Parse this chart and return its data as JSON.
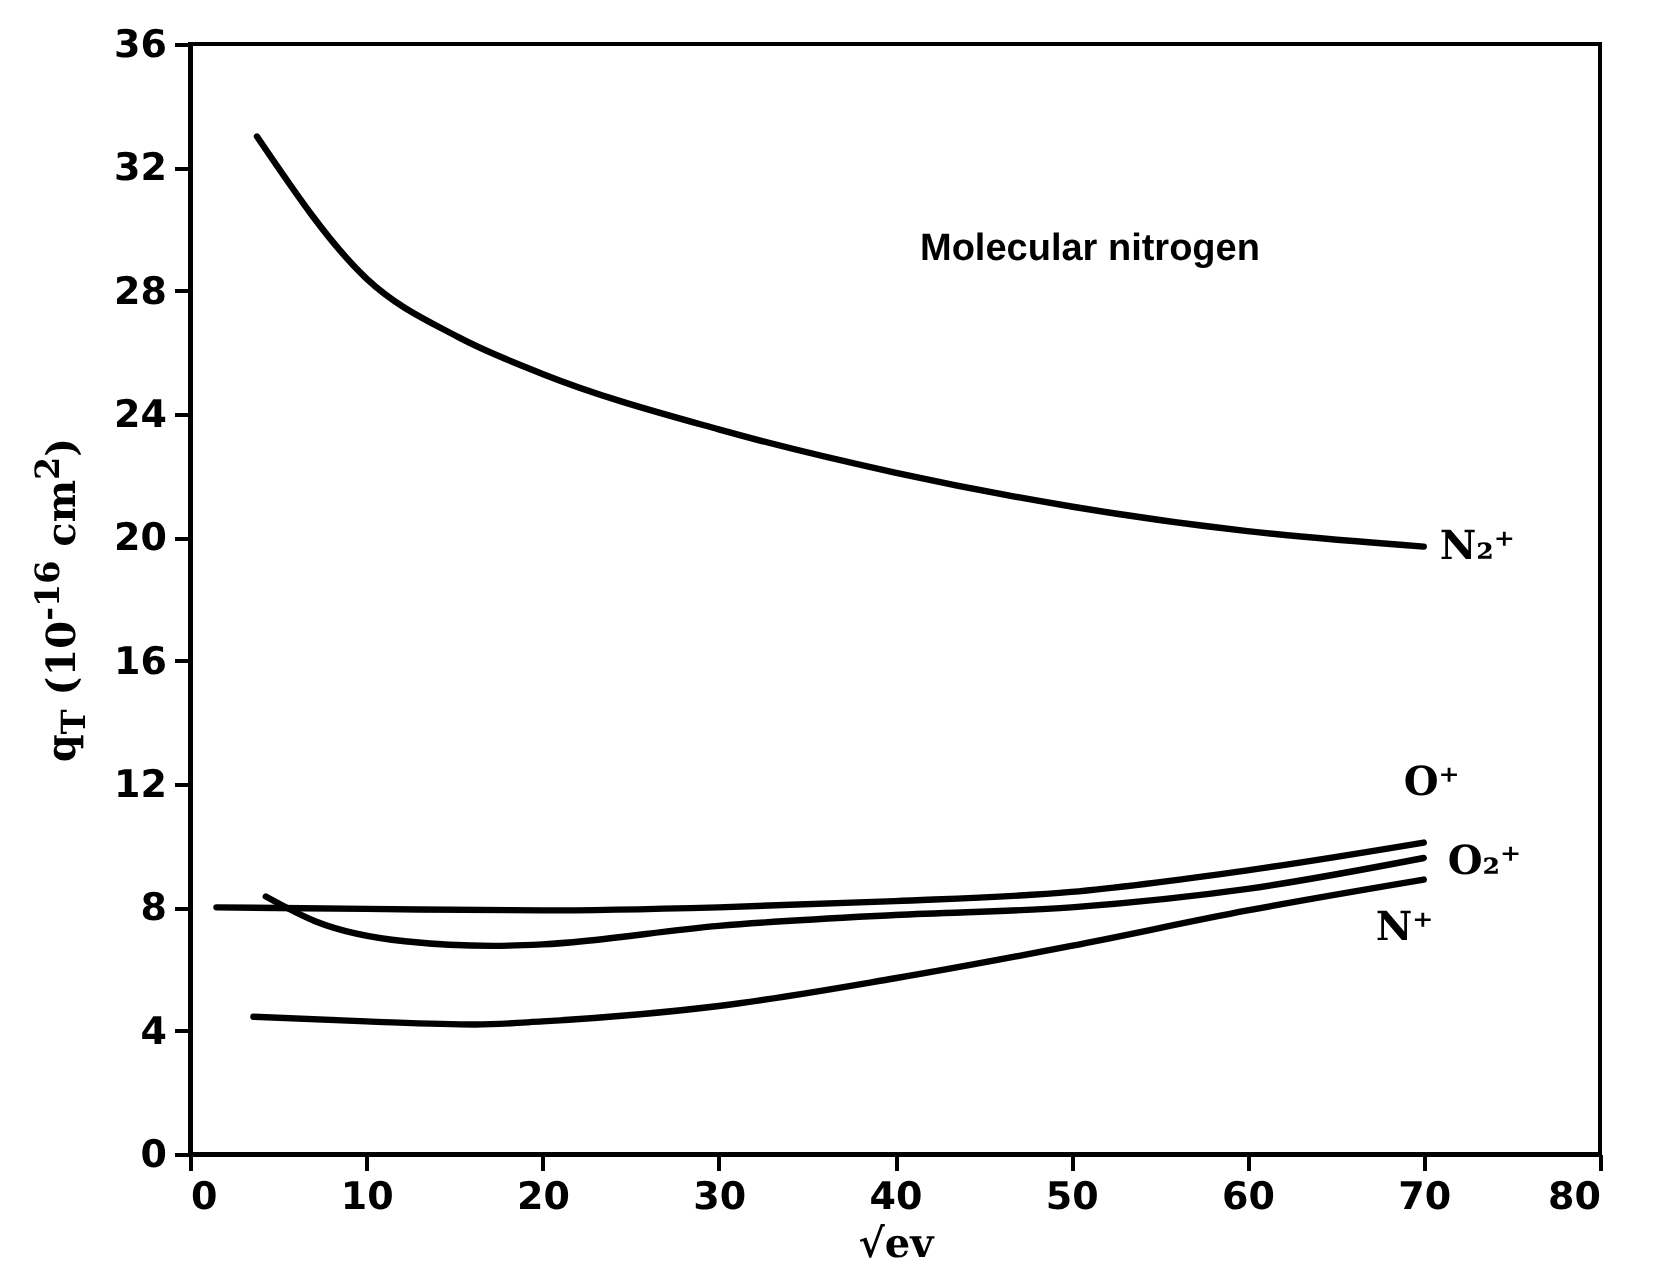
{
  "chart_data": {
    "type": "line",
    "xlabel": "√ev",
    "ylabel": "q$_{T}$ (10$^{-16}$ cm$^{2}$)",
    "annotations": [
      "Molecular nitrogen"
    ],
    "xlim": [
      0,
      80
    ],
    "xticks": [
      0,
      10,
      20,
      30,
      40,
      50,
      60,
      70,
      80
    ],
    "ylim": [
      0,
      36
    ],
    "yticks": [
      0,
      4,
      8,
      12,
      16,
      20,
      24,
      28,
      32,
      36
    ],
    "grid": false,
    "legend": false,
    "marker": "none",
    "line_style": "solid",
    "series": [
      {
        "name": "N₂⁺",
        "color": "#000000",
        "x": [
          3.8,
          10,
          15.2,
          20,
          30,
          40,
          50,
          60,
          70
        ],
        "values": [
          33.0,
          28.4,
          26.5,
          25.3,
          23.5,
          22.1,
          21.0,
          20.2,
          19.7
        ]
      },
      {
        "name": "O⁺",
        "color": "#000000",
        "x": [
          1.5,
          10,
          20,
          30,
          40,
          50,
          60,
          70
        ],
        "values": [
          8.0,
          7.95,
          7.9,
          8.0,
          8.2,
          8.5,
          9.2,
          10.1
        ]
      },
      {
        "name": "O₂⁺",
        "color": "#000000",
        "x": [
          4.3,
          7.1,
          12.2,
          17.2,
          20,
          30,
          40,
          50,
          60,
          70
        ],
        "values": [
          8.35,
          7.55,
          6.9,
          6.75,
          6.8,
          7.4,
          7.75,
          8.0,
          8.6,
          9.6
        ]
      },
      {
        "name": "N⁺",
        "color": "#000000",
        "x": [
          3.6,
          10,
          16.2,
          20,
          30,
          40,
          50,
          60,
          70
        ],
        "values": [
          4.45,
          4.3,
          4.2,
          4.3,
          4.8,
          5.7,
          6.75,
          7.9,
          8.9
        ]
      }
    ]
  }
}
